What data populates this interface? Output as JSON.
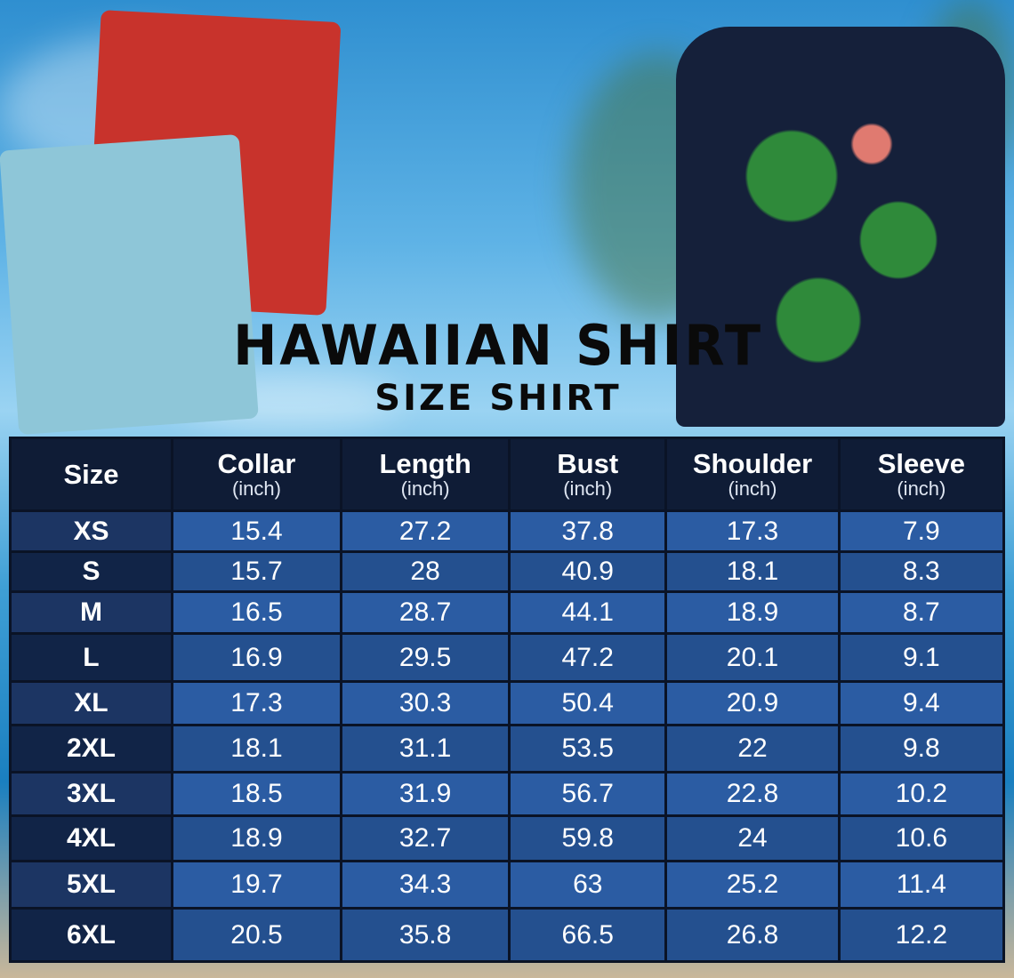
{
  "title": "HAWAIIAN SHIRT",
  "subtitle": "SIZE SHIRT",
  "table": {
    "headers": [
      {
        "label": "Size",
        "unit": ""
      },
      {
        "label": "Collar",
        "unit": "(inch)"
      },
      {
        "label": "Length",
        "unit": "(inch)"
      },
      {
        "label": "Bust",
        "unit": "(inch)"
      },
      {
        "label": "Shoulder",
        "unit": "(inch)"
      },
      {
        "label": "Sleeve",
        "unit": "(inch)"
      }
    ],
    "rows": [
      [
        "XS",
        "15.4",
        "27.2",
        "37.8",
        "17.3",
        "7.9"
      ],
      [
        "S",
        "15.7",
        "28",
        "40.9",
        "18.1",
        "8.3"
      ],
      [
        "M",
        "16.5",
        "28.7",
        "44.1",
        "18.9",
        "8.7"
      ],
      [
        "L",
        "16.9",
        "29.5",
        "47.2",
        "20.1",
        "9.1"
      ],
      [
        "XL",
        "17.3",
        "30.3",
        "50.4",
        "20.9",
        "9.4"
      ],
      [
        "2XL",
        "18.1",
        "31.1",
        "53.5",
        "22",
        "9.8"
      ],
      [
        "3XL",
        "18.5",
        "31.9",
        "56.7",
        "22.8",
        "10.2"
      ],
      [
        "4XL",
        "18.9",
        "32.7",
        "59.8",
        "24",
        "10.6"
      ],
      [
        "5XL",
        "19.7",
        "34.3",
        "63",
        "25.2",
        "11.4"
      ],
      [
        "6XL",
        "20.5",
        "35.8",
        "66.5",
        "26.8",
        "12.2"
      ]
    ]
  },
  "colors": {
    "header": "#0f1c36",
    "size_cell": "#1c3563",
    "value_cell": "#2b5ca3"
  }
}
